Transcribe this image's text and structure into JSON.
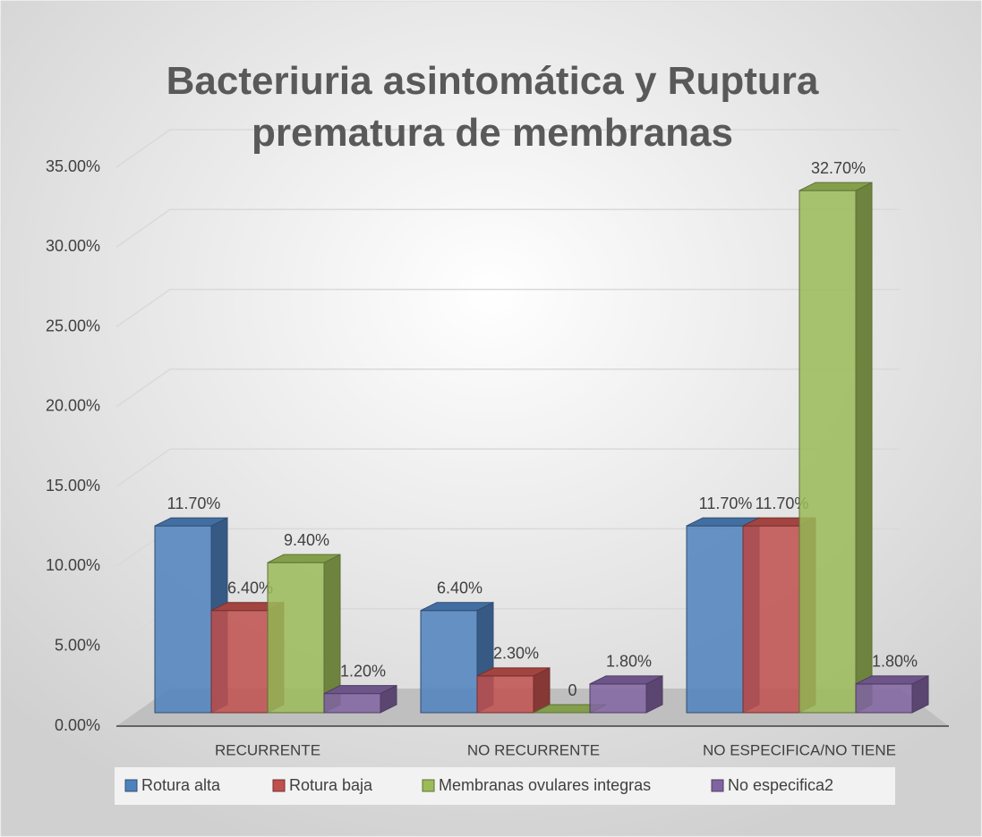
{
  "chart_data": {
    "type": "bar3d",
    "title": "Bacteriuria asintomática y Ruptura prematura de membranas",
    "categories": [
      "RECURRENTE",
      "NO RECURRENTE",
      "NO ESPECIFICA/NO TIENE"
    ],
    "series": [
      {
        "name": "Rotura alta",
        "color": "#4f81bd",
        "values": [
          11.7,
          6.4,
          11.7
        ],
        "value_labels": [
          "11.70%",
          "6.40%",
          "11.70%"
        ]
      },
      {
        "name": "Rotura baja",
        "color": "#c0504d",
        "values": [
          6.4,
          2.3,
          11.7
        ],
        "value_labels": [
          "6.40%",
          "2.30%",
          "11.70%"
        ]
      },
      {
        "name": "Membranas ovulares integras",
        "color": "#9bbb59",
        "values": [
          9.4,
          0,
          32.7
        ],
        "value_labels": [
          "9.40%",
          "0",
          "32.70%"
        ]
      },
      {
        "name": "No especifica2",
        "color": "#8064a2",
        "values": [
          1.2,
          1.8,
          1.8
        ],
        "value_labels": [
          "1.20%",
          "1.80%",
          "1.80%"
        ]
      }
    ],
    "ylim": [
      0,
      35
    ],
    "yticks": [
      {
        "value": 0,
        "label": "0.00%"
      },
      {
        "value": 5,
        "label": "5.00%"
      },
      {
        "value": 10,
        "label": "10.00%"
      },
      {
        "value": 15,
        "label": "15.00%"
      },
      {
        "value": 20,
        "label": "20.00%"
      },
      {
        "value": 25,
        "label": "25.00%"
      },
      {
        "value": 30,
        "label": "30.00%"
      },
      {
        "value": 35,
        "label": "35.00%"
      }
    ],
    "grid": true,
    "legend": "bottom"
  }
}
